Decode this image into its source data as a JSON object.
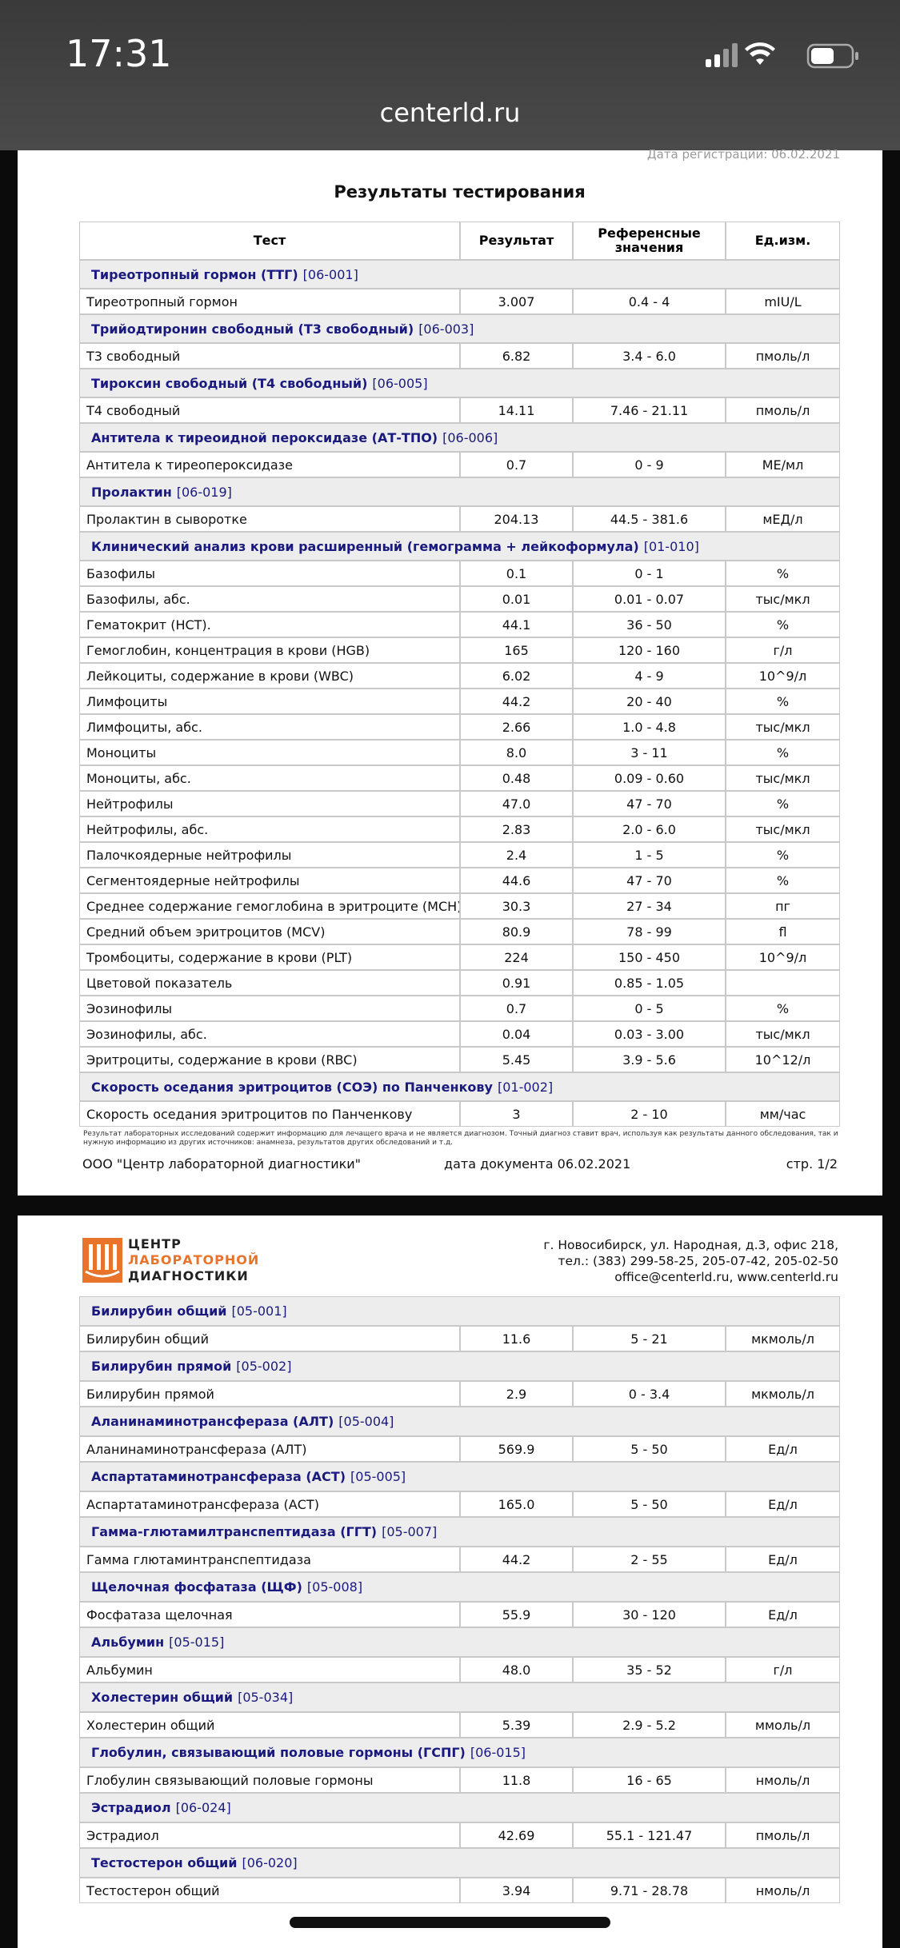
{
  "status_bar": {
    "time": "17:31"
  },
  "browser": {
    "url": "centerld.ru"
  },
  "page1": {
    "registration_date": "Дата регистрации: 06.02.2021",
    "title": "Результаты тестирования",
    "columns": [
      "Тест",
      "Результат",
      "Референсные значения",
      "Ед.изм."
    ],
    "groups": [
      {
        "name": "Тиреотропный гормон (ТТГ)",
        "code": "[06-001]",
        "rows": [
          [
            "Тиреотропный гормон",
            "3.007",
            "0.4 - 4",
            "mIU/L"
          ]
        ]
      },
      {
        "name": "Трийодтиронин свободный (Т3 свободный)",
        "code": "[06-003]",
        "rows": [
          [
            "Т3 свободный",
            "6.82",
            "3.4 - 6.0",
            "пмоль/л"
          ]
        ]
      },
      {
        "name": "Тироксин свободный (Т4 свободный)",
        "code": "[06-005]",
        "rows": [
          [
            "Т4 свободный",
            "14.11",
            "7.46 - 21.11",
            "пмоль/л"
          ]
        ]
      },
      {
        "name": "Антитела к тиреоидной пероксидазе (АТ-ТПО)",
        "code": "[06-006]",
        "rows": [
          [
            "Антитела к тиреопероксидазе",
            "0.7",
            "0 - 9",
            "МЕ/мл"
          ]
        ]
      },
      {
        "name": "Пролактин",
        "code": "[06-019]",
        "rows": [
          [
            "Пролактин в сыворотке",
            "204.13",
            "44.5 - 381.6",
            "мЕД/л"
          ]
        ]
      },
      {
        "name": "Клинический анализ крови расширенный (гемограмма + лейкоформула)",
        "code": "[01-010]",
        "rows": [
          [
            "Базофилы",
            "0.1",
            "0 - 1",
            "%"
          ],
          [
            "Базофилы, абс.",
            "0.01",
            "0.01 - 0.07",
            "тыс/мкл"
          ],
          [
            "Гематокрит (HCT).",
            "44.1",
            "36 - 50",
            "%"
          ],
          [
            "Гемоглобин, концентрация в крови (HGB)",
            "165",
            "120 - 160",
            "г/л"
          ],
          [
            "Лейкоциты, содержание в крови (WBC)",
            "6.02",
            "4 - 9",
            "10^9/л"
          ],
          [
            "Лимфоциты",
            "44.2",
            "20 - 40",
            "%"
          ],
          [
            "Лимфоциты, абс.",
            "2.66",
            "1.0 - 4.8",
            "тыс/мкл"
          ],
          [
            "Моноциты",
            "8.0",
            "3 - 11",
            "%"
          ],
          [
            "Моноциты, абс.",
            "0.48",
            "0.09 - 0.60",
            "тыс/мкл"
          ],
          [
            "Нейтрофилы",
            "47.0",
            "47 - 70",
            "%"
          ],
          [
            "Нейтрофилы, абс.",
            "2.83",
            "2.0 - 6.0",
            "тыс/мкл"
          ],
          [
            "Палочкоядерные нейтрофилы",
            "2.4",
            "1 - 5",
            "%"
          ],
          [
            "Сегментоядерные нейтрофилы",
            "44.6",
            "47 - 70",
            "%"
          ],
          [
            "Среднее содержание гемоглобина в эритроците (MCH)",
            "30.3",
            "27 - 34",
            "пг"
          ],
          [
            "Средний объем эритроцитов (MCV)",
            "80.9",
            "78 - 99",
            "fl"
          ],
          [
            "Тромбоциты, содержание в крови (PLT)",
            "224",
            "150 - 450",
            "10^9/л"
          ],
          [
            "Цветовой показатель",
            "0.91",
            "0.85 - 1.05"
          ],
          [
            "Эозинофилы",
            "0.7",
            "0 - 5",
            "%"
          ],
          [
            "Эозинофилы, абс.",
            "0.04",
            "0.03 - 3.00",
            "тыс/мкл"
          ],
          [
            "Эритроциты, содержание в крови (RBC)",
            "5.45",
            "3.9 - 5.6",
            "10^12/л"
          ]
        ]
      },
      {
        "name": "Скорость оседания эритроцитов (СОЭ) по Панченкову",
        "code": "[01-002]",
        "rows": [
          [
            "Скорость оседания эритроцитов по Панченкову",
            "3",
            "2 - 10",
            "мм/час"
          ]
        ]
      }
    ],
    "disclaimer": "Результат лабораторных исследований содержит информацию для лечащего врача и не является диагнозом. Точный диагноз ставит врач, используя как результаты данного обследования, так и нужную информацию из других источников: анамнеза, результатов других обследований и т.д.",
    "footer": {
      "company": "ООО \"Центр лабораторной диагностики\"",
      "document_date": "дата документа 06.02.2021",
      "page": "стр. 1/2"
    }
  },
  "page2": {
    "logo": [
      "ЦЕНТР",
      "ЛАБОРАТОРНОЙ",
      "ДИАГНОСТИКИ"
    ],
    "address": [
      "г. Новосибирск, ул. Народная, д.3, офис 218,",
      "тел.: (383) 299-58-25, 205-07-42, 205-02-50",
      "office@centerld.ru, www.centerld.ru"
    ],
    "groups": [
      {
        "name": "Билирубин общий",
        "code": "[05-001]",
        "rows": [
          [
            "Билирубин общий",
            "11.6",
            "5 - 21",
            "мкмоль/л"
          ]
        ]
      },
      {
        "name": "Билирубин прямой",
        "code": "[05-002]",
        "rows": [
          [
            "Билирубин прямой",
            "2.9",
            "0 - 3.4",
            "мкмоль/л"
          ]
        ]
      },
      {
        "name": "Аланинаминотрансфераза (АЛТ)",
        "code": "[05-004]",
        "rows": [
          [
            "Аланинаминотрансфераза (АЛТ)",
            "569.9",
            "5 - 50",
            "Ед/л"
          ]
        ]
      },
      {
        "name": "Аспартатаминотрансфераза (АСТ)",
        "code": "[05-005]",
        "rows": [
          [
            "Аспартатаминотрансфераза (АСТ)",
            "165.0",
            "5 - 50",
            "Ед/л"
          ]
        ]
      },
      {
        "name": "Гамма-глютамилтранспептидаза (ГГТ)",
        "code": "[05-007]",
        "rows": [
          [
            "Гамма глютаминтранспептидаза",
            "44.2",
            "2 - 55",
            "Ед/л"
          ]
        ]
      },
      {
        "name": "Щелочная фосфатаза (ЩФ)",
        "code": "[05-008]",
        "rows": [
          [
            "Фосфатаза щелочная",
            "55.9",
            "30 - 120",
            "Ед/л"
          ]
        ]
      },
      {
        "name": "Альбумин",
        "code": "[05-015]",
        "rows": [
          [
            "Альбумин",
            "48.0",
            "35 - 52",
            "г/л"
          ]
        ]
      },
      {
        "name": "Холестерин общий",
        "code": "[05-034]",
        "rows": [
          [
            "Холестерин общий",
            "5.39",
            "2.9 - 5.2",
            "ммоль/л"
          ]
        ]
      },
      {
        "name": "Глобулин, связывающий половые гормоны (ГСПГ)",
        "code": "[06-015]",
        "rows": [
          [
            "Глобулин связывающий половые гормоны",
            "11.8",
            "16 - 65",
            "нмоль/л"
          ]
        ]
      },
      {
        "name": "Эстрадиол",
        "code": "[06-024]",
        "rows": [
          [
            "Эстрадиол",
            "42.69",
            "55.1 - 121.47",
            "пмоль/л"
          ]
        ]
      },
      {
        "name": "Тестостерон общий",
        "code": "[06-020]",
        "rows": [
          [
            "Тестостерон общий",
            "3.94",
            "9.71 - 28.78",
            "нмоль/л"
          ]
        ]
      }
    ]
  }
}
